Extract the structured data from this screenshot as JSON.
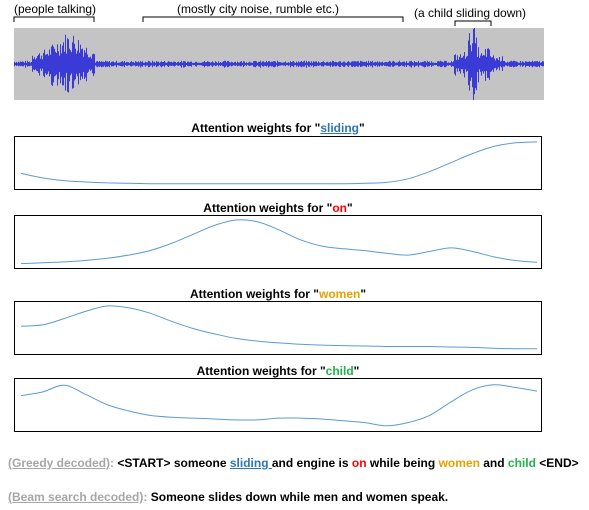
{
  "annotations": {
    "people": "(people talking)",
    "city": "(mostly city noise, rumble etc.)",
    "child": "(a child sliding down)"
  },
  "plots": [
    {
      "title_prefix": "Attention weights for \"",
      "word": "sliding",
      "title_suffix": "\"",
      "color": "#2e75b6"
    },
    {
      "title_prefix": "Attention weights for \"",
      "word": "on",
      "title_suffix": "\"",
      "color": "#ff0000"
    },
    {
      "title_prefix": "Attention weights for \"",
      "word": "women",
      "title_suffix": "\"",
      "color": "#e6a100"
    },
    {
      "title_prefix": "Attention weights for \"",
      "word": "child",
      "title_suffix": "\"",
      "color": "#22b14c"
    }
  ],
  "greedy": {
    "label": "(Greedy decoded)",
    "colon": ": ",
    "t1": "<START> someone ",
    "w1": "sliding ",
    "t2": "and engine is ",
    "w2": "on",
    "t3": " while being ",
    "w3": "women",
    "t4": " and ",
    "w4": "child",
    "t5": " <END>"
  },
  "beam": {
    "label": "(Beam search decoded)",
    "colon": ": ",
    "text": "Someone slides down while men and women speak."
  },
  "colors": {
    "waveform": "#3a3ad6",
    "waveform_bg": "#c4c4c4",
    "attention_line": "#5b9bd5"
  },
  "chart_data": {
    "type": "line",
    "series": [
      {
        "name": "sliding",
        "values": [
          0.28,
          0.18,
          0.12,
          0.09,
          0.07,
          0.06,
          0.05,
          0.05,
          0.05,
          0.05,
          0.05,
          0.05,
          0.05,
          0.05,
          0.05,
          0.05,
          0.06,
          0.08,
          0.16,
          0.32,
          0.52,
          0.72,
          0.88,
          0.96,
          0.98
        ]
      },
      {
        "name": "on",
        "values": [
          0.03,
          0.05,
          0.07,
          0.1,
          0.15,
          0.22,
          0.32,
          0.48,
          0.68,
          0.88,
          1.0,
          0.96,
          0.78,
          0.56,
          0.42,
          0.36,
          0.32,
          0.26,
          0.22,
          0.3,
          0.38,
          0.3,
          0.18,
          0.1,
          0.06
        ]
      },
      {
        "name": "women",
        "values": [
          0.55,
          0.58,
          0.72,
          0.88,
          1.0,
          0.96,
          0.84,
          0.66,
          0.5,
          0.38,
          0.28,
          0.22,
          0.18,
          0.15,
          0.13,
          0.12,
          0.11,
          0.1,
          0.1,
          0.1,
          0.09,
          0.08,
          0.06,
          0.05,
          0.05
        ]
      },
      {
        "name": "child",
        "values": [
          0.72,
          0.8,
          0.95,
          0.75,
          0.52,
          0.38,
          0.28,
          0.24,
          0.22,
          0.2,
          0.18,
          0.18,
          0.22,
          0.22,
          0.2,
          0.16,
          0.12,
          0.05,
          0.12,
          0.28,
          0.58,
          0.85,
          0.96,
          0.9,
          0.82
        ]
      }
    ]
  }
}
